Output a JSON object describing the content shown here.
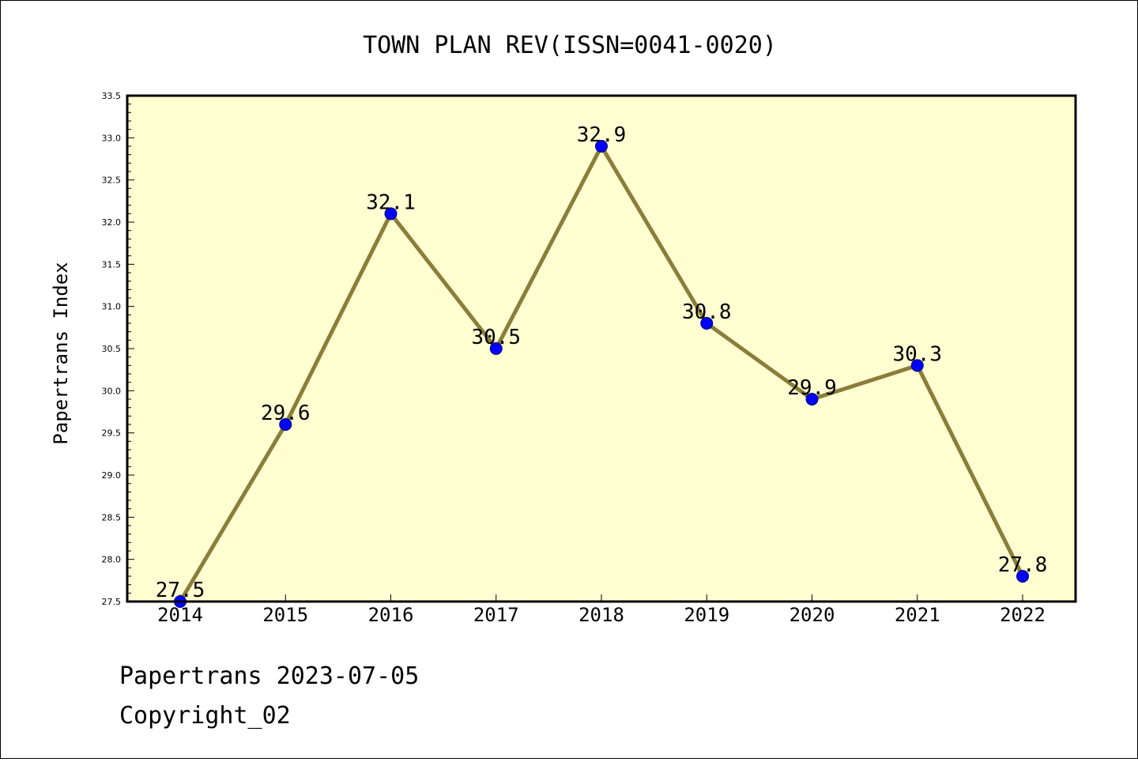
{
  "chart_data": {
    "type": "line",
    "title": "TOWN PLAN REV(ISSN=0041-0020)",
    "ylabel": "Papertrans Index",
    "xlabel": "",
    "categories": [
      "2014",
      "2015",
      "2016",
      "2017",
      "2018",
      "2019",
      "2020",
      "2021",
      "2022"
    ],
    "series": [
      {
        "values": [
          27.5,
          29.6,
          32.1,
          30.5,
          32.9,
          30.8,
          29.9,
          30.3,
          27.8
        ]
      }
    ],
    "data_labels": [
      "27.5",
      "29.6",
      "32.1",
      "30.5",
      "32.9",
      "30.8",
      "29.9",
      "30.3",
      "27.8"
    ],
    "ylim": [
      27.5,
      33.5
    ],
    "yticks": [
      "27.5",
      "28.0",
      "28.5",
      "29.0",
      "29.5",
      "30.0",
      "30.5",
      "31.0",
      "31.5",
      "32.0",
      "32.5",
      "33.0",
      "33.5"
    ],
    "grid": false,
    "legend": "none",
    "colors": {
      "plot_background": "#ffffd2",
      "line": "#8b7d3a",
      "marker": "#0000ff",
      "axes": "#000000"
    }
  },
  "footer": {
    "line1": "Papertrans 2023-07-05",
    "line2": "Copyright_02"
  }
}
